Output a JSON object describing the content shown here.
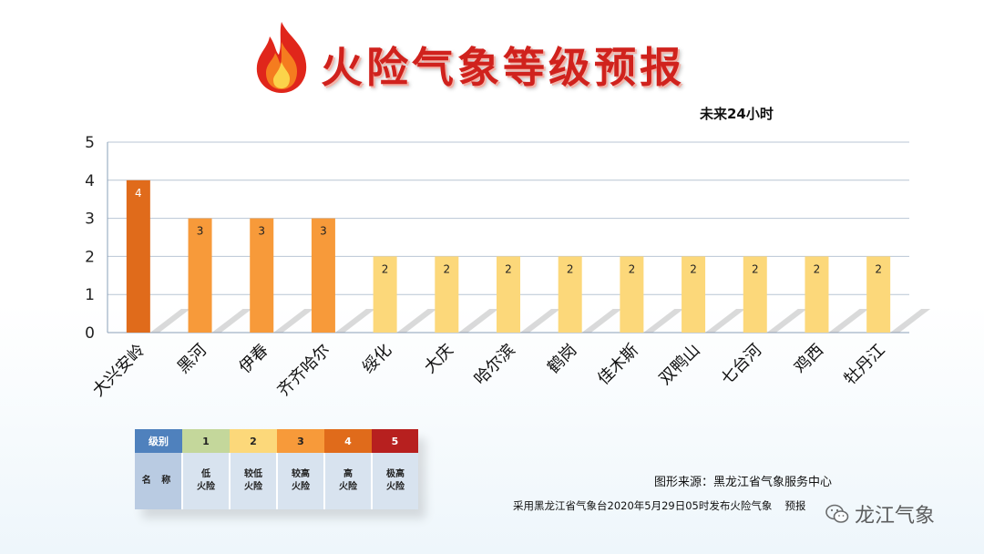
{
  "header": {
    "title": "火险气象等级预报",
    "subtitle": "未来24小时"
  },
  "chart_data": {
    "type": "bar",
    "categories": [
      "大兴安岭",
      "黑河",
      "伊春",
      "齐齐哈尔",
      "绥化",
      "大庆",
      "哈尔滨",
      "鹤岗",
      "佳木斯",
      "双鸭山",
      "七台河",
      "鸡西",
      "牡丹江"
    ],
    "values": [
      4,
      3,
      3,
      3,
      2,
      2,
      2,
      2,
      2,
      2,
      2,
      2,
      2
    ],
    "ylim": [
      0,
      5
    ],
    "yticks": [
      "0",
      "1",
      "2",
      "3",
      "4",
      "5"
    ],
    "grid": true,
    "level_colors": {
      "1": "#c4d79b",
      "2": "#fcd87a",
      "3": "#f79a3a",
      "4": "#e06b1b",
      "5": "#b7201f"
    }
  },
  "legend": {
    "level_label": "级别",
    "name_label": "名 称",
    "levels": [
      {
        "level": "1",
        "name": "低\n火险",
        "color": "#c4d79b"
      },
      {
        "level": "2",
        "name": "较低\n火险",
        "color": "#fcd87a"
      },
      {
        "level": "3",
        "name": "较高\n火险",
        "color": "#f79a3a"
      },
      {
        "level": "4",
        "name": "高\n火险",
        "color": "#e06b1b"
      },
      {
        "level": "5",
        "name": "极高\n火险",
        "color": "#b7201f"
      }
    ]
  },
  "footer": {
    "source": "图形来源：黑龙江省气象服务中心",
    "note": "采用黑龙江省气象台2020年5月29日05时发布火险气象",
    "note_tail": "预报",
    "watermark": "龙江气象"
  }
}
